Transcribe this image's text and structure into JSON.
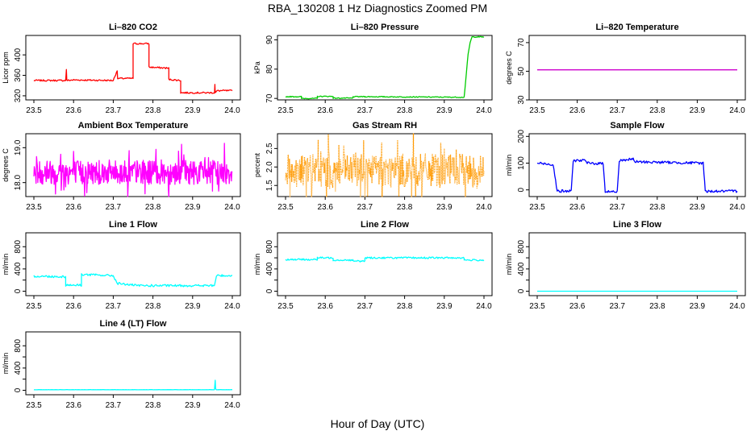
{
  "title": "RBA_130208  1 Hz Diagnostics Zoomed PM",
  "xlabel": "Hour of Day (UTC)",
  "chart_data": [
    {
      "type": "line",
      "title": "Li–820 CO2",
      "ylabel": "Licor ppm",
      "color": "#ff0000",
      "xlim": [
        23.5,
        24.0
      ],
      "ylim": [
        312,
        438
      ],
      "xticks": [
        23.5,
        23.6,
        23.7,
        23.8,
        23.9,
        24.0
      ],
      "yticks": [
        320,
        360,
        400
      ],
      "yticklabels": [
        "320",
        "360",
        "400"
      ],
      "series": [
        {
          "name": "CO2",
          "x": [
            23.5,
            23.58,
            23.582,
            23.583,
            23.6,
            23.7,
            23.71,
            23.711,
            23.712,
            23.75,
            23.75,
            23.76,
            23.76,
            23.79,
            23.79,
            23.84,
            23.84,
            23.87,
            23.87,
            23.955,
            23.956,
            23.957,
            23.96,
            23.962,
            24.0
          ],
          "y": [
            350,
            350,
            372,
            350,
            351,
            350,
            370,
            352,
            354,
            354,
            422,
            422,
            422,
            422,
            376,
            374,
            352,
            350,
            326,
            326,
            343,
            326,
            328,
            330,
            330
          ]
        }
      ],
      "noise": 1.5
    },
    {
      "type": "line",
      "title": "Li–820 Pressure",
      "ylabel": "kPa",
      "color": "#00cc00",
      "xlim": [
        23.5,
        24.0
      ],
      "ylim": [
        69.5,
        91.5
      ],
      "xticks": [
        23.5,
        23.6,
        23.7,
        23.8,
        23.9,
        24.0
      ],
      "yticks": [
        70,
        80,
        90
      ],
      "yticklabels": [
        "70",
        "80",
        "90"
      ],
      "series": [
        {
          "name": "Pressure",
          "x": [
            23.5,
            23.54,
            23.54,
            23.58,
            23.58,
            23.62,
            23.62,
            23.67,
            23.67,
            23.7,
            23.7,
            23.95,
            23.96,
            23.965,
            23.97,
            24.0
          ],
          "y": [
            70.6,
            70.6,
            70.0,
            70.0,
            70.7,
            70.7,
            70.1,
            70.1,
            70.6,
            70.6,
            70.6,
            70.4,
            85,
            89,
            91,
            91
          ]
        }
      ],
      "noise": 0.15
    },
    {
      "type": "line",
      "title": "Li–820 Temperature",
      "ylabel": "degrees C",
      "color": "#cc00cc",
      "xlim": [
        23.5,
        24.0
      ],
      "ylim": [
        30,
        75
      ],
      "xticks": [
        23.5,
        23.6,
        23.7,
        23.8,
        23.9,
        24.0
      ],
      "yticks": [
        30,
        50,
        70
      ],
      "yticklabels": [
        "30",
        "50",
        "70"
      ],
      "series": [
        {
          "name": "Temperature",
          "x": [
            23.5,
            24.0
          ],
          "y": [
            51,
            51
          ]
        }
      ],
      "noise": 0
    },
    {
      "type": "line",
      "title": "Ambient Box Temperature",
      "ylabel": "degrees C",
      "color": "#ff00ff",
      "xlim": [
        23.5,
        24.0
      ],
      "ylim": [
        17.6,
        19.4
      ],
      "xticks": [
        23.5,
        23.6,
        23.7,
        23.8,
        23.9,
        24.0
      ],
      "yticks": [
        18.0,
        19.0
      ],
      "yticklabels": [
        "18.0",
        "19.0"
      ],
      "series": [
        {
          "name": "Box Temperature",
          "x": [
            23.5,
            24.0
          ],
          "y": [
            18.3,
            18.3
          ]
        }
      ],
      "noise": 0.35,
      "spiky": true
    },
    {
      "type": "line",
      "title": "Gas Stream RH",
      "ylabel": "percent",
      "color": "#ff9900",
      "xlim": [
        23.5,
        24.0
      ],
      "ylim": [
        1.2,
        2.9
      ],
      "xticks": [
        23.5,
        23.6,
        23.7,
        23.8,
        23.9,
        24.0
      ],
      "yticks": [
        1.5,
        2.0,
        2.5
      ],
      "yticklabels": [
        "1.5",
        "2.0",
        "2.5"
      ],
      "series": [
        {
          "name": "RH",
          "x": [
            23.5,
            24.0
          ],
          "y": [
            1.9,
            1.9
          ]
        }
      ],
      "noise": 0.45,
      "spiky": true,
      "points": true
    },
    {
      "type": "line",
      "title": "Sample Flow",
      "ylabel": "ml/min",
      "color": "#0000ff",
      "xlim": [
        23.5,
        24.0
      ],
      "ylim": [
        -25,
        210
      ],
      "xticks": [
        23.5,
        23.6,
        23.7,
        23.8,
        23.9,
        24.0
      ],
      "yticks": [
        0,
        100,
        200
      ],
      "yticklabels": [
        "0",
        "100",
        "200"
      ],
      "series": [
        {
          "name": "Sample Flow",
          "x": [
            23.5,
            23.54,
            23.55,
            23.585,
            23.59,
            23.62,
            23.625,
            23.665,
            23.67,
            23.7,
            23.705,
            23.74,
            23.745,
            23.915,
            23.92,
            24.0
          ],
          "y": [
            100,
            95,
            -5,
            -5,
            110,
            110,
            100,
            98,
            -5,
            -8,
            110,
            115,
            105,
            100,
            -5,
            -5
          ]
        }
      ],
      "noise": 5
    },
    {
      "type": "line",
      "title": "Line 1 Flow",
      "ylabel": "ml/min",
      "color": "#00ffff",
      "xlim": [
        23.5,
        24.0
      ],
      "ylim": [
        -80,
        1050
      ],
      "xticks": [
        23.5,
        23.6,
        23.7,
        23.8,
        23.9,
        24.0
      ],
      "yticks": [
        0,
        200,
        400,
        600,
        800
      ],
      "yticklabels": [
        "0",
        "400",
        "800"
      ],
      "series": [
        {
          "name": "Line 1 Flow",
          "x": [
            23.5,
            23.58,
            23.58,
            23.62,
            23.62,
            23.7,
            23.71,
            23.75,
            23.76,
            23.955,
            23.96,
            24.0
          ],
          "y": [
            270,
            260,
            110,
            110,
            300,
            280,
            140,
            110,
            100,
            100,
            280,
            280
          ]
        }
      ],
      "noise": 20
    },
    {
      "type": "line",
      "title": "Line 2 Flow",
      "ylabel": "ml/min",
      "color": "#00ffff",
      "xlim": [
        23.5,
        24.0
      ],
      "ylim": [
        -80,
        1050
      ],
      "xticks": [
        23.5,
        23.6,
        23.7,
        23.8,
        23.9,
        24.0
      ],
      "yticks": [
        0,
        200,
        400,
        600,
        800
      ],
      "yticklabels": [
        "0",
        "400",
        "800"
      ],
      "series": [
        {
          "name": "Line 2 Flow",
          "x": [
            23.5,
            23.58,
            23.58,
            23.62,
            23.62,
            23.67,
            23.67,
            23.7,
            23.7,
            23.95,
            23.95,
            24.0
          ],
          "y": [
            570,
            570,
            600,
            600,
            560,
            560,
            540,
            540,
            600,
            600,
            560,
            560
          ]
        }
      ],
      "noise": 15
    },
    {
      "type": "line",
      "title": "Line 3 Flow",
      "ylabel": "ml/min",
      "color": "#00ffff",
      "xlim": [
        23.5,
        24.0
      ],
      "ylim": [
        -80,
        1050
      ],
      "xticks": [
        23.5,
        23.6,
        23.7,
        23.8,
        23.9,
        24.0
      ],
      "yticks": [
        0,
        200,
        400,
        600,
        800
      ],
      "yticklabels": [
        "0",
        "400",
        "800"
      ],
      "series": [
        {
          "name": "Line 3 Flow",
          "x": [
            23.5,
            24.0
          ],
          "y": [
            0,
            0
          ]
        }
      ],
      "noise": 0
    },
    {
      "type": "line",
      "title": "Line 4 (LT) Flow",
      "ylabel": "ml/min",
      "color": "#00ffff",
      "xlim": [
        23.5,
        24.0
      ],
      "ylim": [
        -80,
        1050
      ],
      "xticks": [
        23.5,
        23.6,
        23.7,
        23.8,
        23.9,
        24.0
      ],
      "yticks": [
        0,
        200,
        400,
        600,
        800
      ],
      "yticklabels": [
        "0",
        "400",
        "800"
      ],
      "series": [
        {
          "name": "Line 4 Flow",
          "x": [
            23.5,
            23.955,
            23.957,
            23.958,
            23.96,
            24.0
          ],
          "y": [
            10,
            10,
            180,
            30,
            10,
            10
          ]
        }
      ],
      "noise": 2
    }
  ]
}
